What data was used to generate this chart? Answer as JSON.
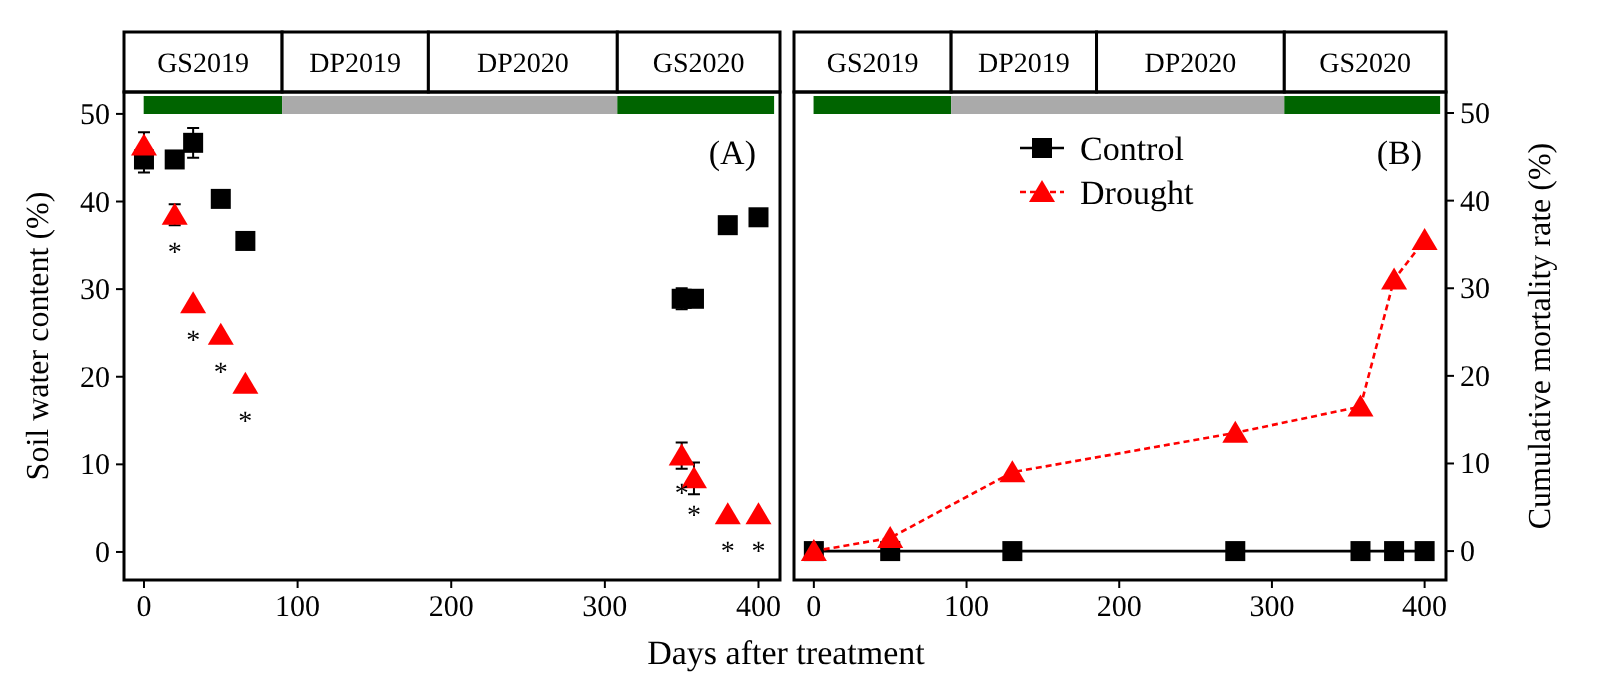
{
  "chart_data": [
    {
      "type": "scatter",
      "ylabel": "Soil water content (%)",
      "xlabel": "Days after treatment",
      "x": [
        0,
        20,
        32,
        50,
        66,
        350,
        358,
        380,
        400
      ],
      "xlim": [
        -13,
        414
      ],
      "xticks": [
        0,
        100,
        200,
        300,
        400
      ],
      "ylim": [
        -3.2,
        52.5
      ],
      "yticks": [
        0,
        10,
        20,
        30,
        40,
        50
      ],
      "legend": false,
      "series": [
        {
          "color": "#000000",
          "marker": "square",
          "values": [
            44.8,
            44.8,
            46.7,
            40.3,
            35.5,
            28.9,
            28.9,
            37.3,
            38.2
          ],
          "errors": [
            1.5,
            null,
            1.7,
            null,
            null,
            1.2,
            null,
            null,
            null
          ]
        },
        {
          "color": "#ff0000",
          "marker": "triangle",
          "values": [
            46.4,
            38.5,
            28.4,
            24.8,
            19.2,
            11,
            8.4,
            4.3,
            4.3
          ],
          "errors": [
            1.5,
            1.2,
            null,
            null,
            null,
            1.5,
            1.8,
            null,
            null
          ]
        }
      ],
      "annotations": [
        "GS2019",
        "DP2019",
        "DP2020",
        "GS2020",
        "(A)",
        {
          "text": "*",
          "x": 20,
          "y": 38.5
        },
        {
          "text": "*",
          "x": 32,
          "y": 28.4
        },
        {
          "text": "*",
          "x": 50,
          "y": 24.8
        },
        {
          "text": "*",
          "x": 66,
          "y": 19.2
        },
        {
          "text": "*",
          "x": 350,
          "y": 11
        },
        {
          "text": "*",
          "x": 358,
          "y": 8.4
        },
        {
          "text": "*",
          "x": 380,
          "y": 4.3
        },
        {
          "text": "*",
          "x": 400,
          "y": 4.3
        }
      ]
    },
    {
      "type": "line",
      "y2label": "Cumulative mortality rate  (%)",
      "x": [
        0,
        50,
        130,
        276,
        358,
        380,
        400
      ],
      "xlim": [
        -13,
        414
      ],
      "xticks": [
        0,
        100,
        200,
        300,
        400
      ],
      "y2lim": [
        -3.3,
        52.4
      ],
      "y2ticks": [
        0,
        10,
        20,
        30,
        40,
        50
      ],
      "legend": "top",
      "series": [
        {
          "name": "Control",
          "color": "#000000",
          "marker": "square",
          "line_style": "solid",
          "axis": "y2",
          "values": [
            0,
            0,
            0,
            0,
            0,
            0,
            0
          ]
        },
        {
          "name": "Drought",
          "color": "#ff0000",
          "marker": "triangle",
          "line_style": "dashed",
          "axis": "y2",
          "values": [
            0,
            1.5,
            9,
            13.5,
            16.5,
            31,
            35.5
          ]
        }
      ],
      "annotations": [
        "GS2019",
        "DP2019",
        "DP2020",
        "GS2020",
        "(B)"
      ]
    }
  ]
}
